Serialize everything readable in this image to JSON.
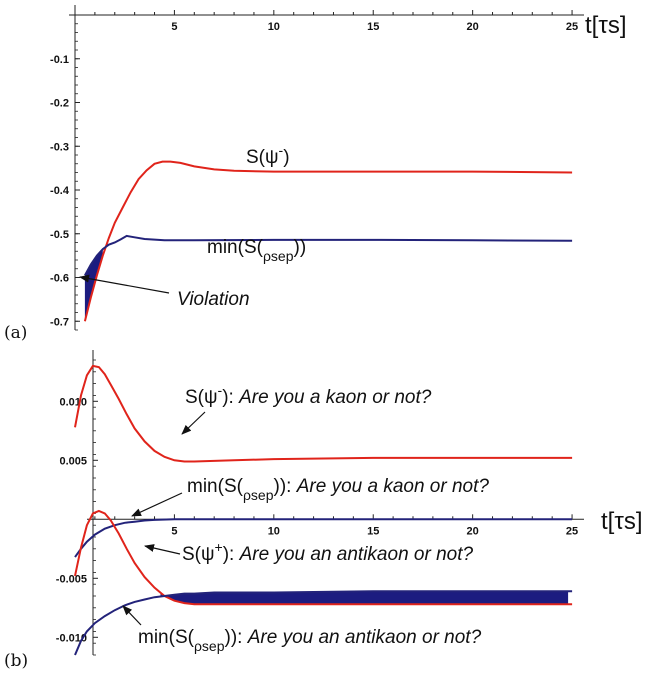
{
  "chart_data": [
    {
      "type": "line",
      "panel_label": "(a)",
      "xlabel": "t[τs]",
      "xlim": [
        0,
        25.5
      ],
      "ylim": [
        -0.72,
        0.0
      ],
      "xticks": [
        5,
        10,
        15,
        20,
        25
      ],
      "yticks": [
        -0.1,
        -0.2,
        -0.3,
        -0.4,
        -0.5,
        -0.6,
        -0.7
      ],
      "series": [
        {
          "name": "S(ψ⁻)",
          "color": "#e0241b",
          "x": [
            0.5,
            0.8,
            1.1,
            1.4,
            1.7,
            2.0,
            2.4,
            2.8,
            3.2,
            3.6,
            4.0,
            4.4,
            4.8,
            5.3,
            6.0,
            7.0,
            8.0,
            10.0,
            15.0,
            20.0,
            25.0
          ],
          "y": [
            -0.7,
            -0.645,
            -0.595,
            -0.55,
            -0.51,
            -0.475,
            -0.44,
            -0.405,
            -0.375,
            -0.355,
            -0.34,
            -0.335,
            -0.335,
            -0.338,
            -0.346,
            -0.353,
            -0.356,
            -0.358,
            -0.358,
            -0.358,
            -0.36
          ]
        },
        {
          "name": "min(S(ρsep))",
          "color": "#23237a",
          "x": [
            0.5,
            0.8,
            1.1,
            1.4,
            1.7,
            2.0,
            2.3,
            2.6,
            3.0,
            3.5,
            4.5,
            6.0,
            10.0,
            15.0,
            20.0,
            25.0
          ],
          "y": [
            -0.595,
            -0.57,
            -0.55,
            -0.535,
            -0.525,
            -0.52,
            -0.513,
            -0.505,
            -0.508,
            -0.512,
            -0.515,
            -0.515,
            -0.514,
            -0.514,
            -0.515,
            -0.516
          ]
        }
      ],
      "shaded_region": {
        "label": "Violation",
        "color": "#1c1c80"
      },
      "annotations": [
        {
          "text": "S(ψ",
          "sup": "-",
          "close": ")"
        },
        {
          "text": "min(S(",
          "sub": "ρsep",
          "close": "))"
        },
        {
          "text": "Violation",
          "italic": true
        }
      ]
    },
    {
      "type": "line",
      "panel_label": "(b)",
      "xlabel": "t[τs]",
      "xlim": [
        0,
        25.5
      ],
      "ylim": [
        -0.0115,
        0.0135
      ],
      "xticks": [
        5,
        10,
        15,
        20,
        25
      ],
      "yticks": [
        0.01,
        0.005,
        -0.005,
        -0.01
      ],
      "ytick_labels": [
        "0.010",
        "0.005",
        "-0.005",
        "-0.010"
      ],
      "series": [
        {
          "name": "S(ψ⁻): Are you a kaon or not?",
          "color": "#e0241b",
          "x": [
            0.0,
            0.3,
            0.6,
            0.9,
            1.2,
            1.5,
            1.8,
            2.2,
            2.6,
            3.0,
            3.5,
            4.0,
            4.5,
            5.0,
            5.5,
            6.0,
            7.0,
            8.0,
            10.0,
            15.0,
            20.0,
            25.0
          ],
          "y": [
            0.0078,
            0.0105,
            0.0122,
            0.013,
            0.0129,
            0.0123,
            0.0114,
            0.0102,
            0.0089,
            0.0077,
            0.0066,
            0.0058,
            0.0053,
            0.005,
            0.0049,
            0.0049,
            0.00495,
            0.005,
            0.0051,
            0.0052,
            0.0052,
            0.0052
          ]
        },
        {
          "name": "min(S(ρsep)): Are you a kaon or not?",
          "color": "#23237a",
          "x": [
            0.0,
            0.3,
            0.6,
            1.0,
            1.5,
            2.0,
            2.5,
            3.0,
            3.5,
            4.0,
            5.0,
            6.0,
            8.0,
            10.0,
            15.0,
            20.0,
            25.0
          ],
          "y": [
            -0.0032,
            -0.0025,
            -0.0019,
            -0.0013,
            -0.0008,
            -0.0005,
            -0.0003,
            -0.0002,
            -0.0001,
            -5e-05,
            0.0,
            0.0,
            0.0,
            0.0,
            0.0,
            0.0,
            0.0
          ]
        },
        {
          "name": "S(ψ⁺): Are you an antikaon or not?",
          "color": "#e0241b",
          "x": [
            0.0,
            0.3,
            0.6,
            0.9,
            1.2,
            1.5,
            1.8,
            2.2,
            2.6,
            3.0,
            3.5,
            4.0,
            4.5,
            5.0,
            5.5,
            6.0,
            7.0,
            8.0,
            10.0,
            15.0,
            20.0,
            25.0
          ],
          "y": [
            -0.0048,
            -0.0024,
            -0.0005,
            0.0005,
            0.0007,
            0.0005,
            -0.0001,
            -0.0012,
            -0.0025,
            -0.0037,
            -0.0049,
            -0.0058,
            -0.0065,
            -0.0069,
            -0.0071,
            -0.0072,
            -0.0072,
            -0.0072,
            -0.0072,
            -0.0072,
            -0.0072,
            -0.0072
          ]
        },
        {
          "name": "min(S(ρsep)): Are you an antikaon or not?",
          "color": "#23237a",
          "x": [
            0.0,
            0.3,
            0.6,
            1.0,
            1.5,
            2.0,
            2.5,
            3.0,
            3.5,
            4.0,
            4.5,
            5.0,
            5.5,
            6.0,
            7.0,
            8.0,
            10.0,
            15.0,
            20.0,
            25.0
          ],
          "y": [
            -0.0115,
            -0.0103,
            -0.0095,
            -0.0088,
            -0.0082,
            -0.0077,
            -0.0073,
            -0.007,
            -0.0068,
            -0.0066,
            -0.0065,
            -0.0064,
            -0.0063,
            -0.0063,
            -0.0062,
            -0.0062,
            -0.0062,
            -0.0061,
            -0.0061,
            -0.0061
          ]
        }
      ],
      "shaded_region": {
        "color": "#1c1c80"
      },
      "annotations": [
        {
          "text": "S(ψ",
          "sup": "-",
          "close": "): ",
          "italic_part": "Are you a kaon or not?"
        },
        {
          "text": "min(S(",
          "sub": "ρsep",
          "close": ")): ",
          "italic_part": "Are you a kaon or not?"
        },
        {
          "text": "S(ψ",
          "sup": "+",
          "close": "): ",
          "italic_part": "Are you an antikaon or not?"
        },
        {
          "text": "min(S(",
          "sub": "ρsep",
          "close": ")): ",
          "italic_part": "Are you an antikaon or not?"
        }
      ]
    }
  ]
}
